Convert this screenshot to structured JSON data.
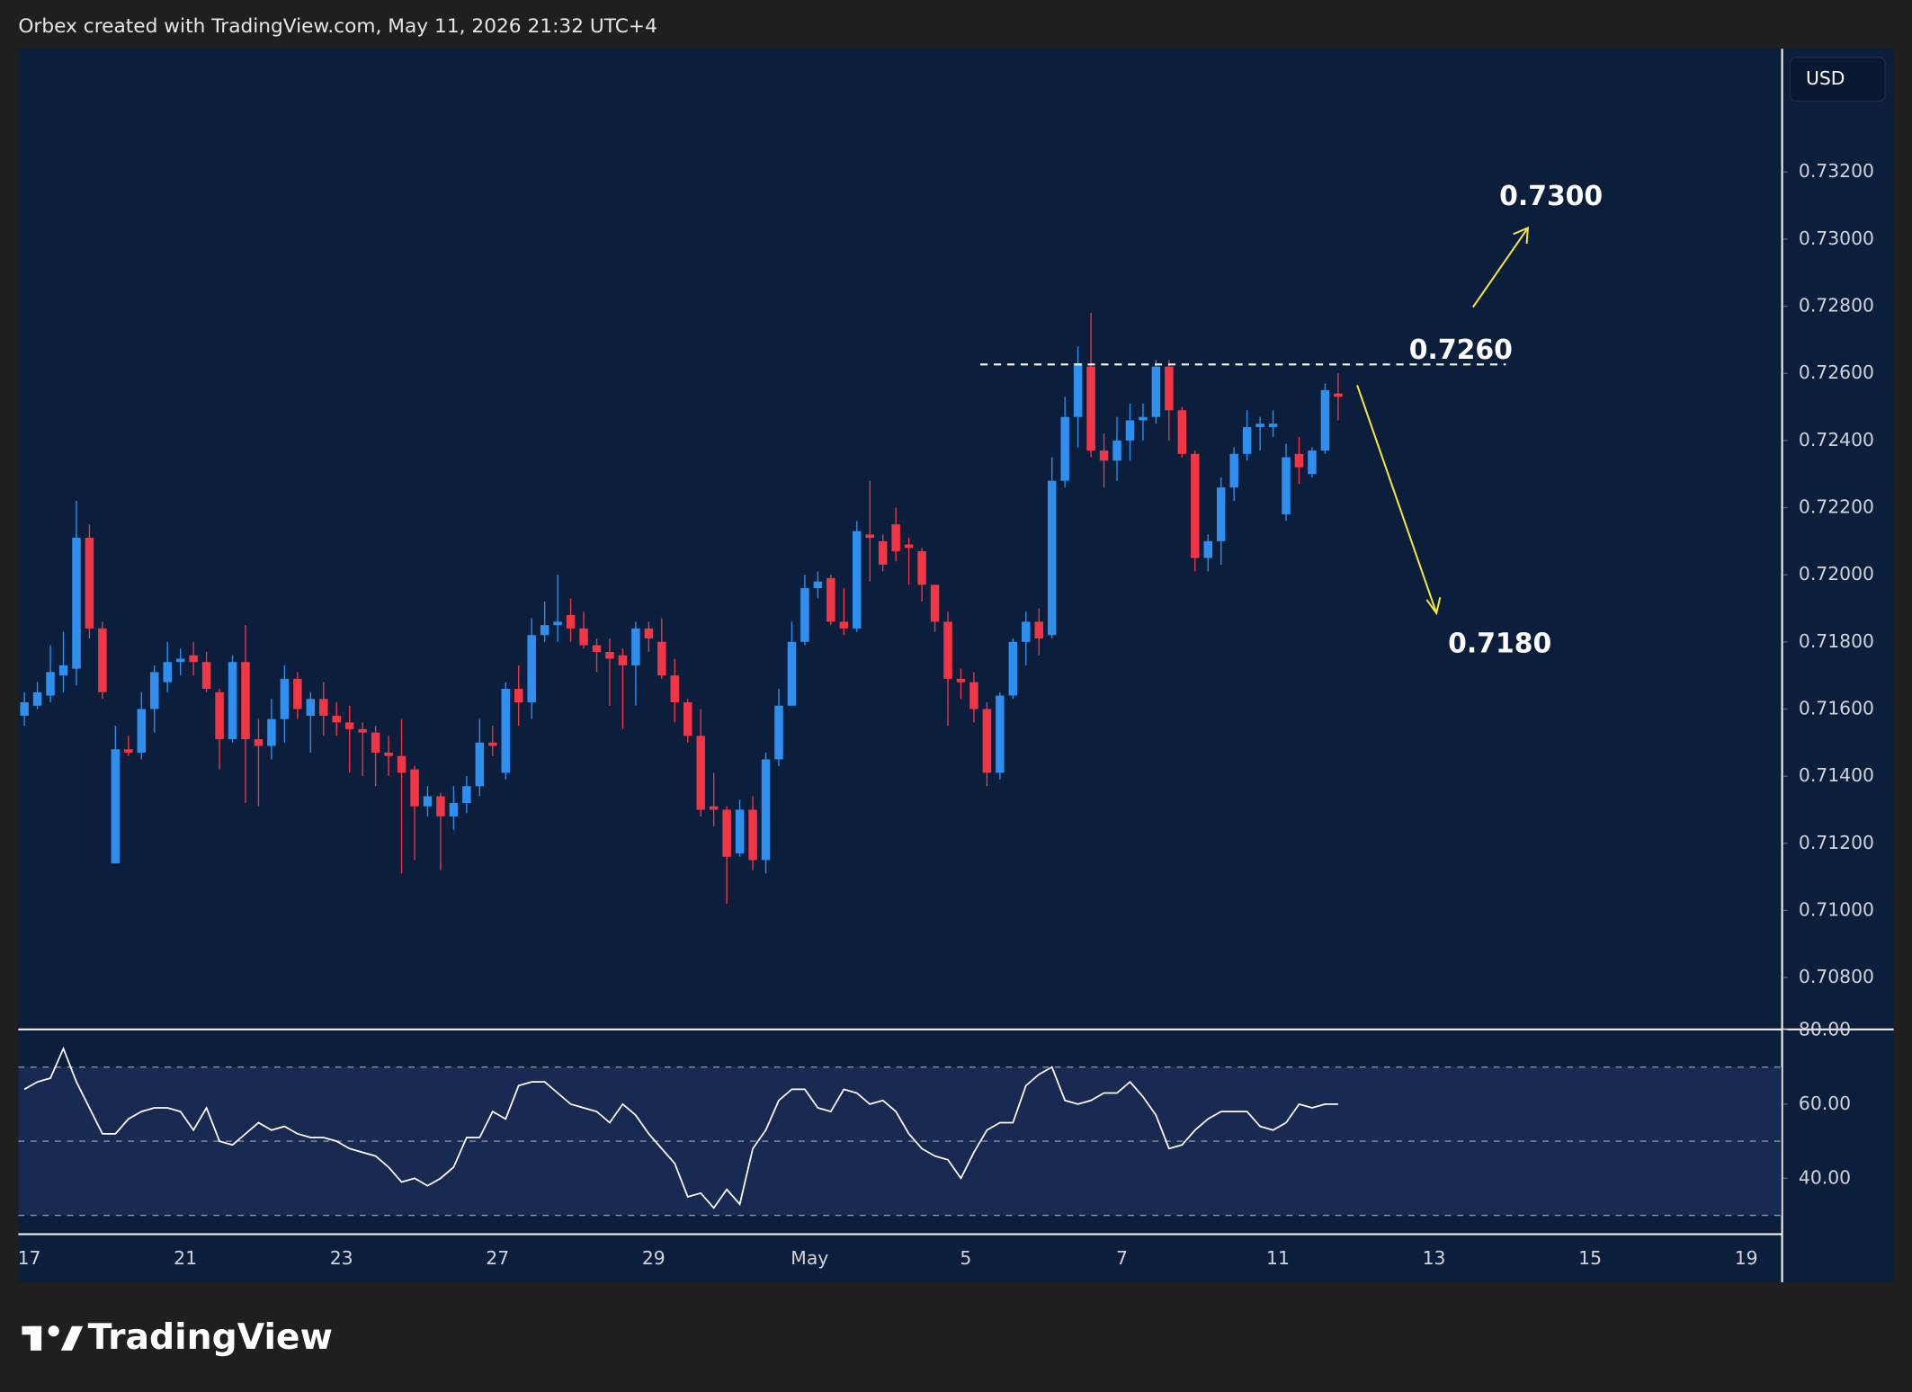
{
  "header": "Orbex created with TradingView.com, May 11, 2026 21:32 UTC+4",
  "currency_button": "USD",
  "footer_logo": "TradingView",
  "chart_data": {
    "type": "candlestick",
    "up_color": "#2f8fef",
    "down_color": "#f23645",
    "categories": [
      "17",
      null,
      null,
      null,
      null,
      null,
      null,
      null,
      null,
      null,
      null,
      null,
      "21",
      null,
      null,
      null,
      null,
      null,
      null,
      null,
      null,
      null,
      null,
      null,
      "23",
      null,
      null,
      null,
      null,
      null,
      null,
      null,
      null,
      null,
      null,
      null,
      "27",
      null,
      null,
      null,
      null,
      null,
      null,
      null,
      null,
      null,
      null,
      null,
      "29",
      null,
      null,
      null,
      null,
      null,
      null,
      null,
      null,
      null,
      null,
      null,
      "May",
      null,
      null,
      null,
      null,
      null,
      null,
      null,
      null,
      null,
      null,
      null,
      "5",
      null,
      null,
      null,
      null,
      null,
      null,
      null,
      null,
      null,
      null,
      null,
      "7",
      null,
      null,
      null,
      null,
      null,
      null,
      null,
      null,
      null,
      null,
      null,
      "11",
      null,
      null,
      null,
      null,
      null,
      null,
      null,
      null,
      null,
      null,
      null,
      "13",
      null,
      null,
      null,
      null,
      null,
      null,
      null,
      null,
      null,
      null,
      null,
      "15",
      null,
      null,
      null,
      null,
      null,
      null,
      null,
      null,
      null,
      null,
      null,
      "19"
    ],
    "open": [
      0.7158,
      0.7161,
      0.7164,
      0.717,
      0.7172,
      0.7211,
      0.7184,
      0.7114,
      0.7148,
      0.7147,
      0.716,
      0.7168,
      0.7174,
      0.7176,
      0.7174,
      0.7165,
      0.7151,
      0.7174,
      0.7151,
      0.7149,
      0.7157,
      0.7169,
      0.7158,
      0.7163,
      0.7158,
      0.7156,
      0.7154,
      0.7153,
      0.7147,
      0.7146,
      0.7142,
      0.7131,
      0.7134,
      0.7128,
      0.7132,
      0.7137,
      0.715,
      0.7141,
      0.7166,
      0.7162,
      0.7182,
      0.7185,
      0.7188,
      0.7184,
      0.7179,
      0.7177,
      0.7176,
      0.7173,
      0.7184,
      0.718,
      0.717,
      0.7162,
      0.7152,
      0.7131,
      0.713,
      0.7117,
      0.713,
      0.7115,
      0.7145,
      0.7161,
      0.718,
      0.7196,
      0.7199,
      0.7186,
      0.7184,
      0.7212,
      0.721,
      0.7215,
      0.7209,
      0.7207,
      0.7197,
      0.7186,
      0.7169,
      0.7168,
      0.716,
      0.7141,
      0.7164,
      0.718,
      0.7186,
      0.7182,
      0.7228,
      0.7247,
      0.7262,
      0.7237,
      0.7234,
      0.724,
      0.7246,
      0.7247,
      0.7262,
      0.7249,
      0.7236,
      0.7205,
      0.721,
      0.7226,
      0.7236,
      0.7244,
      0.7244,
      0.7218,
      0.7236,
      0.723,
      0.7237,
      0.7254,
      null,
      null,
      null,
      null,
      null,
      null,
      null,
      null,
      null,
      null,
      null,
      null,
      null,
      null,
      null,
      null,
      null,
      null,
      null,
      null,
      null,
      null,
      null,
      null,
      null,
      null,
      null,
      null,
      null,
      null,
      null
    ],
    "high": [
      0.7165,
      0.7168,
      0.7179,
      0.7183,
      0.7222,
      0.7215,
      0.7186,
      0.7155,
      0.7152,
      0.7165,
      0.7173,
      0.718,
      0.7178,
      0.718,
      0.7177,
      0.7166,
      0.7176,
      0.7185,
      0.7157,
      0.7163,
      0.7173,
      0.7171,
      0.7165,
      0.7168,
      0.7162,
      0.7161,
      0.7156,
      0.7155,
      0.7152,
      0.7157,
      0.7143,
      0.7137,
      0.7135,
      0.7137,
      0.714,
      0.7157,
      0.7155,
      0.7168,
      0.7173,
      0.7187,
      0.7192,
      0.72,
      0.7193,
      0.7189,
      0.7181,
      0.7181,
      0.7178,
      0.7186,
      0.7186,
      0.7187,
      0.7175,
      0.7163,
      0.716,
      0.7141,
      0.7131,
      0.7133,
      0.7134,
      0.7147,
      0.7166,
      0.7186,
      0.72,
      0.7201,
      0.72,
      0.7196,
      0.7216,
      0.7228,
      0.7212,
      0.722,
      0.7211,
      0.7208,
      0.7197,
      0.7189,
      0.7172,
      0.7171,
      0.7162,
      0.7165,
      0.7181,
      0.7189,
      0.719,
      0.7235,
      0.7253,
      0.7268,
      0.7278,
      0.7242,
      0.7247,
      0.7251,
      0.7251,
      0.7264,
      0.7264,
      0.725,
      0.7237,
      0.7212,
      0.7229,
      0.7238,
      0.7249,
      0.7247,
      0.7249,
      0.7239,
      0.7241,
      0.7238,
      0.7257,
      0.726,
      null,
      null,
      null,
      null,
      null,
      null,
      null,
      null,
      null,
      null,
      null,
      null,
      null,
      null,
      null,
      null,
      null,
      null,
      null,
      null,
      null,
      null,
      null,
      null,
      null,
      null,
      null,
      null,
      null,
      null,
      null
    ],
    "low": [
      0.7155,
      0.716,
      0.7162,
      0.7165,
      0.7167,
      0.7181,
      0.7163,
      0.7114,
      0.7146,
      0.7145,
      0.7153,
      0.7165,
      0.717,
      0.717,
      0.7165,
      0.7142,
      0.715,
      0.7132,
      0.7131,
      0.7145,
      0.715,
      0.7157,
      0.7147,
      0.7152,
      0.7152,
      0.7141,
      0.714,
      0.7137,
      0.714,
      0.7111,
      0.7115,
      0.7128,
      0.7112,
      0.7124,
      0.7129,
      0.7134,
      0.7146,
      0.7139,
      0.7155,
      0.7157,
      0.718,
      0.718,
      0.718,
      0.7178,
      0.7171,
      0.7161,
      0.7154,
      0.7161,
      0.7177,
      0.7169,
      0.7156,
      0.715,
      0.7128,
      0.7125,
      0.7102,
      0.7116,
      0.7112,
      0.7111,
      0.7143,
      0.7161,
      0.7179,
      0.7193,
      0.7185,
      0.7182,
      0.7183,
      0.7198,
      0.7201,
      0.7204,
      0.7197,
      0.7192,
      0.7183,
      0.7155,
      0.7163,
      0.7156,
      0.7137,
      0.7139,
      0.7163,
      0.7173,
      0.7176,
      0.7181,
      0.7226,
      0.7238,
      0.7235,
      0.7226,
      0.7228,
      0.7234,
      0.724,
      0.7245,
      0.724,
      0.7235,
      0.7201,
      0.7201,
      0.7203,
      0.7222,
      0.7234,
      0.7237,
      0.7241,
      0.7216,
      0.7227,
      0.7229,
      0.7236,
      0.7246,
      null,
      null,
      null,
      null,
      null,
      null,
      null,
      null,
      null,
      null,
      null,
      null,
      null,
      null,
      null,
      null,
      null,
      null,
      null,
      null,
      null,
      null,
      null,
      null,
      null,
      null,
      null,
      null,
      null,
      null,
      null
    ],
    "close": [
      0.7162,
      0.7165,
      0.7171,
      0.7173,
      0.7211,
      0.7184,
      0.7165,
      0.7148,
      0.7147,
      0.716,
      0.7171,
      0.7174,
      0.7175,
      0.7174,
      0.7166,
      0.7151,
      0.7174,
      0.7151,
      0.7149,
      0.7157,
      0.7169,
      0.716,
      0.7163,
      0.7158,
      0.7156,
      0.7154,
      0.7153,
      0.7147,
      0.7146,
      0.7141,
      0.7131,
      0.7134,
      0.7128,
      0.7132,
      0.7137,
      0.715,
      0.7149,
      0.7166,
      0.7162,
      0.7182,
      0.7185,
      0.7186,
      0.7184,
      0.7179,
      0.7177,
      0.7175,
      0.7173,
      0.7184,
      0.7181,
      0.717,
      0.7162,
      0.7152,
      0.713,
      0.713,
      0.7116,
      0.713,
      0.7115,
      0.7145,
      0.7161,
      0.718,
      0.7196,
      0.7198,
      0.7186,
      0.7184,
      0.7213,
      0.7211,
      0.7203,
      0.7207,
      0.7208,
      0.7197,
      0.7186,
      0.7169,
      0.7168,
      0.716,
      0.7141,
      0.7164,
      0.718,
      0.7186,
      0.7181,
      0.7228,
      0.7247,
      0.7263,
      0.7237,
      0.7234,
      0.724,
      0.7246,
      0.7247,
      0.7262,
      0.7249,
      0.7236,
      0.7205,
      0.721,
      0.7226,
      0.7236,
      0.7244,
      0.7245,
      0.7245,
      0.7235,
      0.7232,
      0.7237,
      0.7255,
      0.7253,
      null,
      null,
      null,
      null,
      null,
      null,
      null,
      null,
      null,
      null,
      null,
      null,
      null,
      null,
      null,
      null,
      null,
      null,
      null,
      null,
      null,
      null,
      null,
      null,
      null,
      null,
      null,
      null,
      null,
      null,
      null
    ],
    "ylim": [
      0.70651,
      0.73567
    ],
    "yticks": [
      {
        "value": 0.708,
        "label": "0.70800"
      },
      {
        "value": 0.71,
        "label": "0.71000"
      },
      {
        "value": 0.712,
        "label": "0.71200"
      },
      {
        "value": 0.714,
        "label": "0.71400"
      },
      {
        "value": 0.716,
        "label": "0.71600"
      },
      {
        "value": 0.718,
        "label": "0.71800"
      },
      {
        "value": 0.72,
        "label": "0.72000"
      },
      {
        "value": 0.722,
        "label": "0.72200"
      },
      {
        "value": 0.724,
        "label": "0.72400"
      },
      {
        "value": 0.726,
        "label": "0.72600"
      },
      {
        "value": 0.728,
        "label": "0.72800"
      },
      {
        "value": 0.73,
        "label": "0.73000"
      },
      {
        "value": 0.732,
        "label": "0.73200"
      }
    ],
    "annotations": [
      "0.7300",
      "0.7260",
      "0.7180"
    ],
    "rsi": {
      "color": "#ffffff",
      "values": [
        64,
        66,
        67,
        75,
        66,
        59,
        52,
        52,
        56,
        58,
        59,
        59,
        58,
        53,
        59,
        50,
        49,
        52,
        55,
        53,
        54,
        52,
        51,
        51,
        50,
        48,
        47,
        46,
        43,
        39,
        40,
        38,
        40,
        43,
        51,
        51,
        58,
        56,
        65,
        66,
        66,
        63,
        60,
        59,
        58,
        55,
        60,
        57,
        52,
        48,
        44,
        35,
        36,
        32,
        37,
        33,
        48,
        53,
        61,
        64,
        64,
        59,
        58,
        64,
        63,
        60,
        61,
        58,
        52,
        48,
        46,
        45,
        40,
        47,
        53,
        55,
        55,
        65,
        68,
        70,
        61,
        60,
        61,
        63,
        63,
        66,
        62,
        57,
        48,
        49,
        53,
        56,
        58,
        58,
        58,
        54,
        53,
        55,
        60,
        59,
        60,
        60,
        null,
        null,
        null,
        null,
        null,
        null,
        null,
        null,
        null,
        null,
        null,
        null,
        null,
        null,
        null,
        null,
        null,
        null,
        null,
        null,
        null,
        null,
        null,
        null,
        null,
        null,
        null,
        null,
        null,
        null,
        null
      ],
      "ylim": [
        25.1,
        80
      ],
      "yticks": [
        {
          "value": 40,
          "label": "40.00"
        },
        {
          "value": 60,
          "label": "60.00"
        },
        {
          "value": 80,
          "label": "80.00"
        }
      ],
      "levels": [
        70,
        50,
        30
      ]
    }
  }
}
